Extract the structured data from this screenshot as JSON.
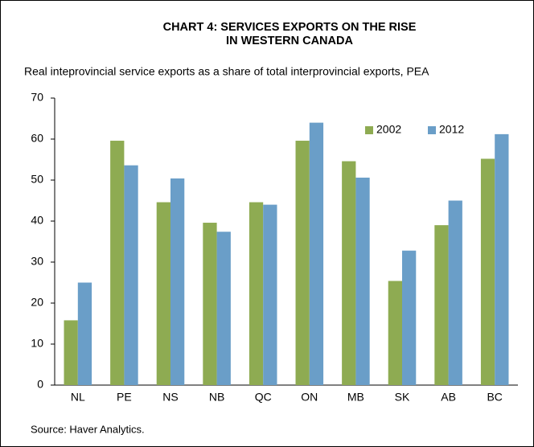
{
  "chart_data": {
    "type": "bar",
    "title": [
      "CHART 4: SERVICES EXPORTS ON THE RISE",
      "IN WESTERN CANADA"
    ],
    "subtitle": "Real inteprovincial service exports as a share of total interprovincial exports, PEA",
    "source": "Source: Haver Analytics.",
    "categories": [
      "NL",
      "PE",
      "NS",
      "NB",
      "QC",
      "ON",
      "MB",
      "SK",
      "AB",
      "BC"
    ],
    "series": [
      {
        "name": "2002",
        "color": "#8eab52",
        "values": [
          15.8,
          59.6,
          44.6,
          39.6,
          44.6,
          59.6,
          54.6,
          25.4,
          39,
          55.2
        ]
      },
      {
        "name": "2012",
        "color": "#6a9ec8",
        "values": [
          25,
          53.6,
          50.4,
          37.4,
          44,
          64,
          50.6,
          32.8,
          45,
          61.2
        ]
      }
    ],
    "ylim": [
      0,
      70
    ],
    "yticks": [
      0,
      10,
      20,
      30,
      40,
      50,
      60,
      70
    ],
    "grid": false,
    "legend": "upper right"
  }
}
